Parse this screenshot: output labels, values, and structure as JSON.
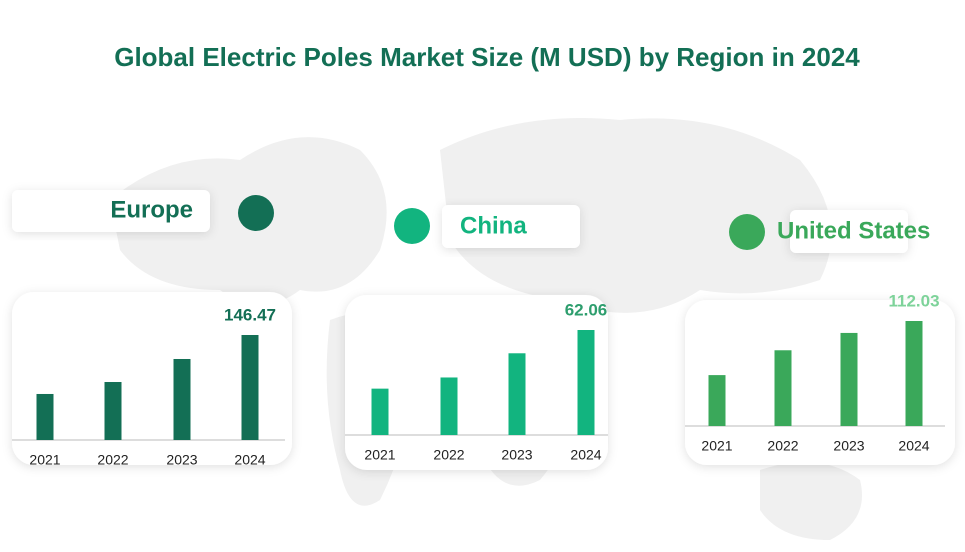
{
  "title": "Global Electric Poles Market Size (M USD) by Region in 2024",
  "chart_data": [
    {
      "type": "bar",
      "title": "Europe",
      "categories": [
        "2021",
        "2022",
        "2023",
        "2024"
      ],
      "values": [
        64.2,
        80.9,
        113.0,
        146.47
      ],
      "color": "#136f55"
    },
    {
      "type": "bar",
      "title": "China",
      "categories": [
        "2021",
        "2022",
        "2023",
        "2024"
      ],
      "values": [
        27.4,
        34.0,
        48.3,
        62.06
      ],
      "color": "#12b47f"
    },
    {
      "type": "bar",
      "title": "United States",
      "categories": [
        "2021",
        "2022",
        "2023",
        "2024"
      ],
      "values": [
        54.3,
        80.8,
        99.3,
        112.03
      ],
      "color": "#3aa85a"
    }
  ]
}
